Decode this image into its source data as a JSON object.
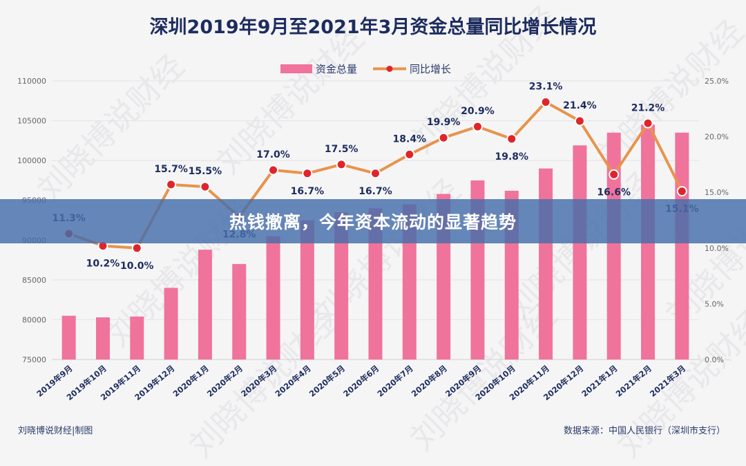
{
  "watermark_text": "刘晓博说财经",
  "banner": {
    "text": "热钱撤离，今年资本流动的显著趋势"
  },
  "footer": {
    "left": "刘晓博说财经|制图",
    "right": "数据来源：中国人民银行（深圳市支行）"
  },
  "colors": {
    "bar": "#f0739c",
    "line": "#e8934a",
    "marker": "#e0242c",
    "title": "#1d2c5e"
  },
  "chart_data": {
    "type": "bar",
    "title": "深圳2019年9月至2021年3月资金总量同比增长情况",
    "categories": [
      "2019年9月",
      "2019年10月",
      "2019年11月",
      "2019年12月",
      "2020年1月",
      "2020年2月",
      "2020年3月",
      "2020年4月",
      "2020年5月",
      "2020年6月",
      "2020年7月",
      "2020年8月",
      "2020年9月",
      "2020年10月",
      "2020年11月",
      "2020年12月",
      "2021年1月",
      "2021年2月",
      "2021年3月"
    ],
    "series": [
      {
        "name": "资金总量",
        "type": "bar",
        "axis": "left",
        "values": [
          80500,
          80300,
          80400,
          84000,
          88800,
          87000,
          90500,
          92500,
          93500,
          94000,
          94500,
          95800,
          97500,
          96200,
          99000,
          101900,
          103500,
          104500,
          103500
        ]
      },
      {
        "name": "同比增长",
        "type": "line",
        "axis": "right",
        "values": [
          11.3,
          10.2,
          10.0,
          15.7,
          15.5,
          12.8,
          17.0,
          16.7,
          17.5,
          16.7,
          18.4,
          19.9,
          20.9,
          19.8,
          23.1,
          21.4,
          16.6,
          21.2,
          15.1
        ],
        "labels": [
          "11.3%",
          "10.2%",
          "10.0%",
          "15.7%",
          "15.5%",
          "12.8%",
          "17.0%",
          "16.7%",
          "17.5%",
          "16.7%",
          "18.4%",
          "19.9%",
          "20.9%",
          "19.8%",
          "23.1%",
          "21.4%",
          "16.6%",
          "21.2%",
          "15.1%"
        ]
      }
    ],
    "y_left": {
      "min": 75000,
      "max": 110000,
      "ticks": [
        "75000",
        "80000",
        "85000",
        "90000",
        "95000",
        "100000",
        "105000",
        "110000"
      ]
    },
    "y_right": {
      "min": 0,
      "max": 25,
      "ticks": [
        "0.0%",
        "5.0%",
        "10.0%",
        "15.0%",
        "20.0%",
        "25.0%"
      ]
    },
    "legend_position": "top-center",
    "grid": true
  }
}
